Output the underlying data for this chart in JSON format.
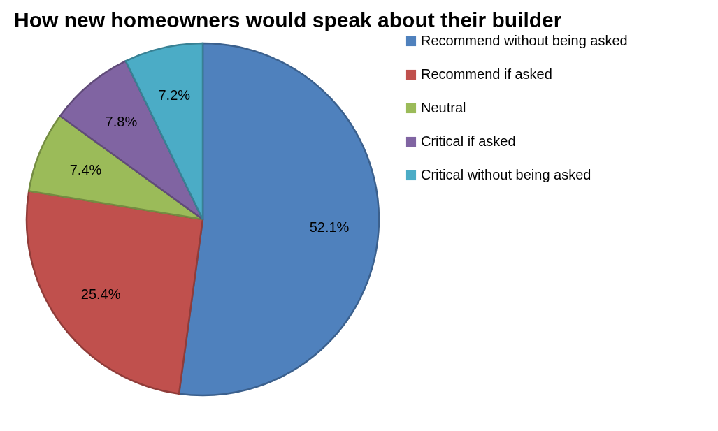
{
  "chart_data": {
    "type": "pie",
    "title": "How new homeowners would speak about their builder",
    "categories": [
      "Recommend without being asked",
      "Recommend if asked",
      "Neutral",
      "Critical if asked",
      "Critical without being asked"
    ],
    "values": [
      52.1,
      25.4,
      7.4,
      7.8,
      7.2
    ],
    "value_labels": [
      "52.1%",
      "25.4%",
      "7.4%",
      "7.8%",
      "7.2%"
    ],
    "colors": [
      "#4f81bd",
      "#c0504d",
      "#9bbb59",
      "#8064a2",
      "#4bacc6"
    ],
    "legend": "right"
  }
}
